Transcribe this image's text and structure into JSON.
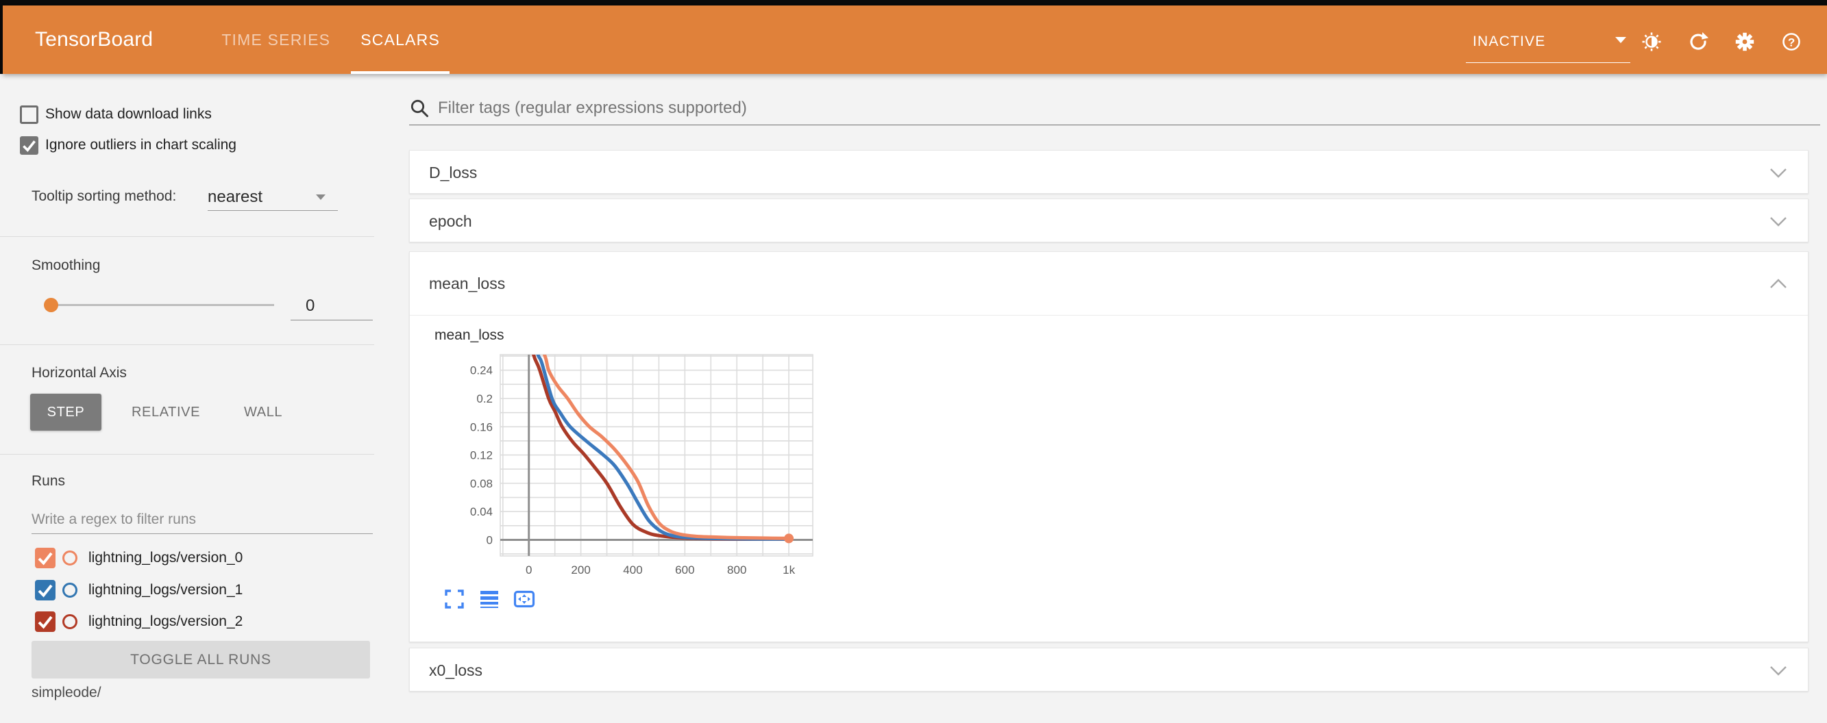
{
  "header": {
    "title": "TensorBoard",
    "tabs": [
      {
        "label": "TIME SERIES",
        "active": false
      },
      {
        "label": "SCALARS",
        "active": true
      }
    ],
    "status": "INACTIVE",
    "accent_color": "#e0813a"
  },
  "sidebar": {
    "checkboxes": [
      {
        "label": "Show data download links",
        "checked": false
      },
      {
        "label": "Ignore outliers in chart scaling",
        "checked": true
      }
    ],
    "tooltip_sorting": {
      "label": "Tooltip sorting method:",
      "value": "nearest"
    },
    "smoothing": {
      "label": "Smoothing",
      "value": "0"
    },
    "horizontal_axis": {
      "label": "Horizontal Axis",
      "options": [
        "STEP",
        "RELATIVE",
        "WALL"
      ],
      "selected": "STEP"
    },
    "runs": {
      "label": "Runs",
      "filter_placeholder": "Write a regex to filter runs",
      "items": [
        {
          "label": "lightning_logs/version_0",
          "checked": true,
          "color": "#ee8661"
        },
        {
          "label": "lightning_logs/version_1",
          "checked": true,
          "color": "#3276b1"
        },
        {
          "label": "lightning_logs/version_2",
          "checked": true,
          "color": "#b23b26"
        }
      ],
      "toggle_all_label": "TOGGLE ALL RUNS",
      "footer": "simpleode/"
    }
  },
  "main": {
    "filter_placeholder": "Filter tags (regular expressions supported)",
    "sections": [
      {
        "title": "D_loss",
        "expanded": false
      },
      {
        "title": "epoch",
        "expanded": false
      },
      {
        "title": "mean_loss",
        "expanded": true
      },
      {
        "title": "x0_loss",
        "expanded": false
      }
    ]
  },
  "chart_data": {
    "type": "line",
    "title": "mean_loss",
    "xlabel": "step",
    "ylabel": "",
    "xlim": [
      -110,
      1092
    ],
    "ylim": [
      -0.0228,
      0.262
    ],
    "grid": true,
    "x_grid_interval": 100,
    "y_grid_interval": 0.02,
    "x_ticks": [
      0,
      200,
      400,
      600,
      800,
      1000
    ],
    "x_tick_labels": [
      "0",
      "200",
      "400",
      "600",
      "800",
      "1k"
    ],
    "y_ticks": [
      0,
      0.04,
      0.08,
      0.12,
      0.16,
      0.2,
      0.24
    ],
    "y_tick_labels": [
      "0",
      "0.04",
      "0.08",
      "0.12",
      "0.16",
      "0.2",
      "0.24"
    ],
    "grid_color": "#dcdcdc",
    "axis_color": "#8f8f8f",
    "tick_color": "#5d5d5d",
    "series": [
      {
        "name": "lightning_logs/version_0",
        "color": "#ee8661",
        "final_point_marker": true,
        "points": [
          [
            0,
            0.31
          ],
          [
            60,
            0.262
          ],
          [
            76,
            0.24
          ],
          [
            110,
            0.218
          ],
          [
            149,
            0.2
          ],
          [
            190,
            0.178
          ],
          [
            233,
            0.16
          ],
          [
            280,
            0.146
          ],
          [
            330,
            0.128
          ],
          [
            380,
            0.105
          ],
          [
            420,
            0.082
          ],
          [
            460,
            0.048
          ],
          [
            500,
            0.024
          ],
          [
            540,
            0.013
          ],
          [
            580,
            0.008
          ],
          [
            640,
            0.005
          ],
          [
            700,
            0.004
          ],
          [
            800,
            0.003
          ],
          [
            900,
            0.0025
          ],
          [
            1000,
            0.002
          ]
        ]
      },
      {
        "name": "lightning_logs/version_1",
        "color": "#3b79bd",
        "final_point_marker": false,
        "points": [
          [
            0,
            0.3
          ],
          [
            35,
            0.262
          ],
          [
            50,
            0.25
          ],
          [
            89,
            0.2
          ],
          [
            120,
            0.18
          ],
          [
            159,
            0.16
          ],
          [
            220,
            0.14
          ],
          [
            280,
            0.122
          ],
          [
            330,
            0.105
          ],
          [
            380,
            0.078
          ],
          [
            420,
            0.052
          ],
          [
            460,
            0.028
          ],
          [
            500,
            0.014
          ],
          [
            540,
            0.007
          ],
          [
            600,
            0.0035
          ],
          [
            700,
            0.002
          ],
          [
            800,
            0.0015
          ],
          [
            900,
            0.001
          ],
          [
            1000,
            0.001
          ]
        ]
      },
      {
        "name": "lightning_logs/version_2",
        "color": "#aa3a27",
        "final_point_marker": false,
        "points": [
          [
            0,
            0.3
          ],
          [
            18,
            0.262
          ],
          [
            40,
            0.242
          ],
          [
            76,
            0.2
          ],
          [
            100,
            0.182
          ],
          [
            128,
            0.16
          ],
          [
            170,
            0.138
          ],
          [
            210,
            0.122
          ],
          [
            250,
            0.104
          ],
          [
            300,
            0.08
          ],
          [
            350,
            0.048
          ],
          [
            400,
            0.022
          ],
          [
            450,
            0.011
          ],
          [
            500,
            0.006
          ],
          [
            600,
            0.0025
          ],
          [
            700,
            0.0015
          ],
          [
            800,
            0.001
          ],
          [
            900,
            0.001
          ],
          [
            1000,
            0.001
          ]
        ]
      }
    ]
  }
}
